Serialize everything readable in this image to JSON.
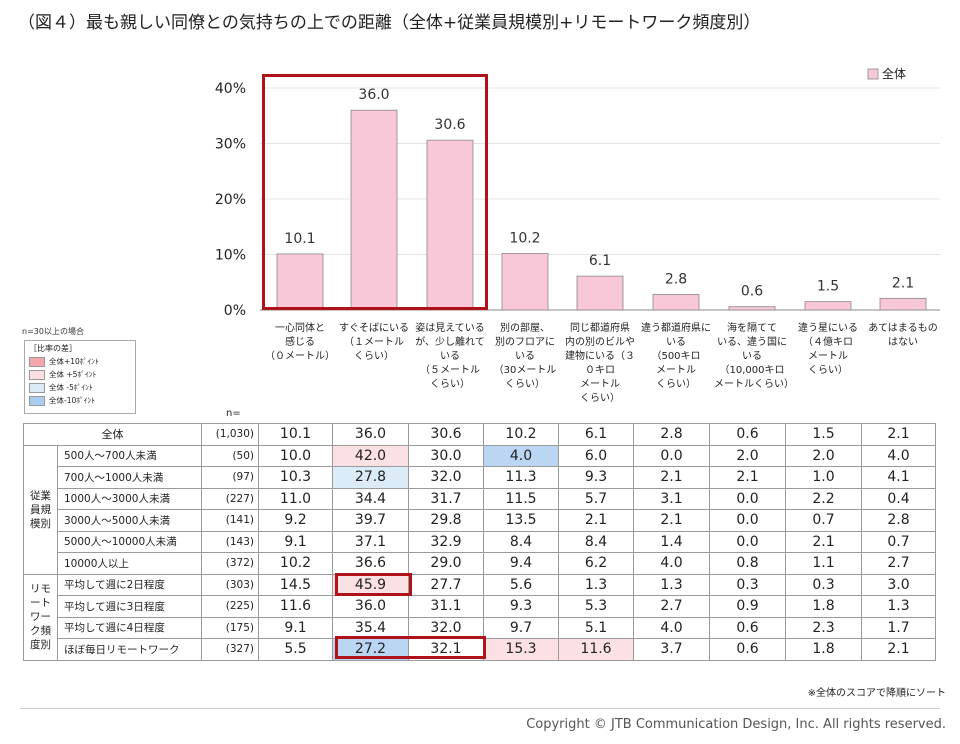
{
  "title": "（図４）最も親しい同僚との気持ちの上での距離（全体+従業員規模別+リモートワーク頻度別）",
  "chart_data": {
    "type": "bar",
    "categories": [
      "一心同体と感じる（０メートル）",
      "すぐそばにいる（１メートルくらい）",
      "姿は見えているが、少し離れている（５メートルくらい）",
      "別の部屋、別のフロアにいる（30メートルくらい）",
      "同じ都道府県内の別のビルや建物にいる（３０キロメートルくらい）",
      "違う都道府県にいる（500キロメートルくらい）",
      "海を隔てている、違う国にいる（10,000キロメートルくらい）",
      "違う星にいる（４億キロメートルくらい）",
      "あてはまるものはない"
    ],
    "series": [
      {
        "name": "全体",
        "values": [
          10.1,
          36.0,
          30.6,
          10.2,
          6.1,
          2.8,
          0.6,
          1.5,
          2.1
        ]
      }
    ],
    "value_labels": [
      "10.1",
      "36.0",
      "30.6",
      "10.2",
      "6.1",
      "2.8",
      "0.6",
      "1.5",
      "2.1"
    ],
    "yticks": [
      "0%",
      "10%",
      "20%",
      "30%",
      "40%"
    ],
    "ylim": [
      0,
      45
    ],
    "bar_color": "#f8c8d8",
    "legend_position": "top-right"
  },
  "column_headers": [
    [
      "一心同体と",
      "感じる",
      "（０メートル）"
    ],
    [
      "すぐそばにいる",
      "（１メートル",
      "くらい）"
    ],
    [
      "姿は見えている",
      "が、少し離れて",
      "いる",
      "（５メートル",
      "くらい）"
    ],
    [
      "別の部屋、",
      "別のフロアに",
      "いる",
      "（30メートル",
      "くらい）"
    ],
    [
      "同じ都道府県",
      "内の別のビルや",
      "建物にいる（３",
      "０キロ",
      "メートル",
      "くらい）"
    ],
    [
      "違う都道府県に",
      "いる",
      "（500キロ",
      "メートル",
      "くらい）"
    ],
    [
      "海を隔てて",
      "いる、違う国に",
      "いる",
      "（10,000キロ",
      "メートルくらい）"
    ],
    [
      "違う星にいる",
      "（４億キロ",
      "メートル",
      "くらい）"
    ],
    [
      "あてはまるもの",
      "はない"
    ]
  ],
  "legend": {
    "caption": "n=30以上の場合",
    "title": "［比率の差］",
    "items": [
      {
        "label": "全体+10ﾎﾟｲﾝﾄ",
        "color": "#f4a6ad"
      },
      {
        "label": "全体 +5ﾎﾟｲﾝﾄ",
        "color": "#fbdde2"
      },
      {
        "label": "全体 -5ﾎﾟｲﾝﾄ",
        "color": "#dcebf8"
      },
      {
        "label": "全体-10ﾎﾟｲﾝﾄ",
        "color": "#a9cdf0"
      }
    ]
  },
  "n_label": "n=",
  "table": {
    "total": {
      "label": "全体",
      "n": "(1,030)",
      "values": [
        "10.1",
        "36.0",
        "30.6",
        "10.2",
        "6.1",
        "2.8",
        "0.6",
        "1.5",
        "2.1"
      ]
    },
    "groups": [
      {
        "name": "従業員規模別",
        "rows": [
          {
            "label": "500人～700人未満",
            "n": "(50)",
            "values": [
              "10.0",
              "42.0",
              "30.0",
              "4.0",
              "6.0",
              "0.0",
              "2.0",
              "2.0",
              "4.0"
            ]
          },
          {
            "label": "700人～1000人未満",
            "n": "(97)",
            "values": [
              "10.3",
              "27.8",
              "32.0",
              "11.3",
              "9.3",
              "2.1",
              "2.1",
              "1.0",
              "4.1"
            ]
          },
          {
            "label": "1000人～3000人未満",
            "n": "(227)",
            "values": [
              "11.0",
              "34.4",
              "31.7",
              "11.5",
              "5.7",
              "3.1",
              "0.0",
              "2.2",
              "0.4"
            ]
          },
          {
            "label": "3000人～5000人未満",
            "n": "(141)",
            "values": [
              "9.2",
              "39.7",
              "29.8",
              "13.5",
              "2.1",
              "2.1",
              "0.0",
              "0.7",
              "2.8"
            ]
          },
          {
            "label": "5000人～10000人未満",
            "n": "(143)",
            "values": [
              "9.1",
              "37.1",
              "32.9",
              "8.4",
              "8.4",
              "1.4",
              "0.0",
              "2.1",
              "0.7"
            ]
          },
          {
            "label": "10000人以上",
            "n": "(372)",
            "values": [
              "10.2",
              "36.6",
              "29.0",
              "9.4",
              "6.2",
              "4.0",
              "0.8",
              "1.1",
              "2.7"
            ]
          }
        ]
      },
      {
        "name": "リモートワーク頻度別",
        "rows": [
          {
            "label": "平均して週に2日程度",
            "n": "(303)",
            "values": [
              "14.5",
              "45.9",
              "27.7",
              "5.6",
              "1.3",
              "1.3",
              "0.3",
              "0.3",
              "3.0"
            ]
          },
          {
            "label": "平均して週に3日程度",
            "n": "(225)",
            "values": [
              "11.6",
              "36.0",
              "31.1",
              "9.3",
              "5.3",
              "2.7",
              "0.9",
              "1.8",
              "1.3"
            ]
          },
          {
            "label": "平均して週に4日程度",
            "n": "(175)",
            "values": [
              "9.1",
              "35.4",
              "32.0",
              "9.7",
              "5.1",
              "4.0",
              "0.6",
              "2.3",
              "1.7"
            ]
          },
          {
            "label": "ほぼ毎日リモートワーク",
            "n": "(327)",
            "values": [
              "5.5",
              "27.2",
              "32.1",
              "15.3",
              "11.6",
              "3.7",
              "0.6",
              "1.8",
              "2.1"
            ]
          }
        ]
      }
    ]
  },
  "sort_note": "※全体のスコアで降順にソート",
  "copyright": "Copyright © JTB Communication Design, Inc. All rights reserved."
}
